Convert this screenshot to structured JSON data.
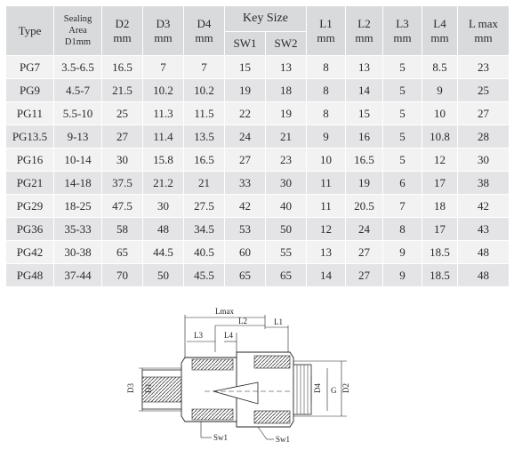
{
  "table": {
    "headers": {
      "type": "Type",
      "sealing_line1": "Sealing Area",
      "sealing_line2": "D1mm",
      "d2": "D2",
      "d3": "D3",
      "d4": "D4",
      "key_size": "Key Size",
      "sw1": "SW1",
      "sw2": "SW2",
      "l1": "L1",
      "l2": "L2",
      "l3": "L3",
      "l4": "L4",
      "lmax": "L max",
      "unit": "mm"
    },
    "rows": [
      [
        "PG7",
        "3.5-6.5",
        "16.5",
        "7",
        "7",
        "15",
        "13",
        "8",
        "13",
        "5",
        "8.5",
        "23"
      ],
      [
        "PG9",
        "4.5-7",
        "21.5",
        "10.2",
        "10.2",
        "19",
        "18",
        "8",
        "14",
        "5",
        "9",
        "25"
      ],
      [
        "PG11",
        "5.5-10",
        "25",
        "11.3",
        "11.5",
        "22",
        "19",
        "8",
        "15",
        "5",
        "10",
        "27"
      ],
      [
        "PG13.5",
        "9-13",
        "27",
        "11.4",
        "13.5",
        "24",
        "21",
        "9",
        "16",
        "5",
        "10.8",
        "28"
      ],
      [
        "PG16",
        "10-14",
        "30",
        "15.8",
        "16.5",
        "27",
        "23",
        "10",
        "16.5",
        "5",
        "12",
        "30"
      ],
      [
        "PG21",
        "14-18",
        "37.5",
        "21.2",
        "21",
        "33",
        "30",
        "11",
        "19",
        "6",
        "17",
        "38"
      ],
      [
        "PG29",
        "18-25",
        "47.5",
        "30",
        "27.5",
        "42",
        "40",
        "11",
        "20.5",
        "7",
        "18",
        "42"
      ],
      [
        "PG36",
        "35-33",
        "58",
        "48",
        "34.5",
        "53",
        "50",
        "12",
        "24",
        "8",
        "17",
        "43"
      ],
      [
        "PG42",
        "30-38",
        "65",
        "44.5",
        "40.5",
        "60",
        "55",
        "13",
        "27",
        "9",
        "18.5",
        "48"
      ],
      [
        "PG48",
        "37-44",
        "70",
        "50",
        "45.5",
        "65",
        "65",
        "14",
        "27",
        "9",
        "18.5",
        "48"
      ]
    ]
  },
  "diagram": {
    "labels": {
      "lmax": "Lmax",
      "l1": "L1",
      "l2": "L2",
      "l3": "L3",
      "l4": "L4",
      "d1": "D1",
      "d3": "D3",
      "d4": "D4",
      "g": "G",
      "d2": "D2",
      "sw1_left": "Sw1",
      "sw1_right": "Sw1"
    }
  }
}
